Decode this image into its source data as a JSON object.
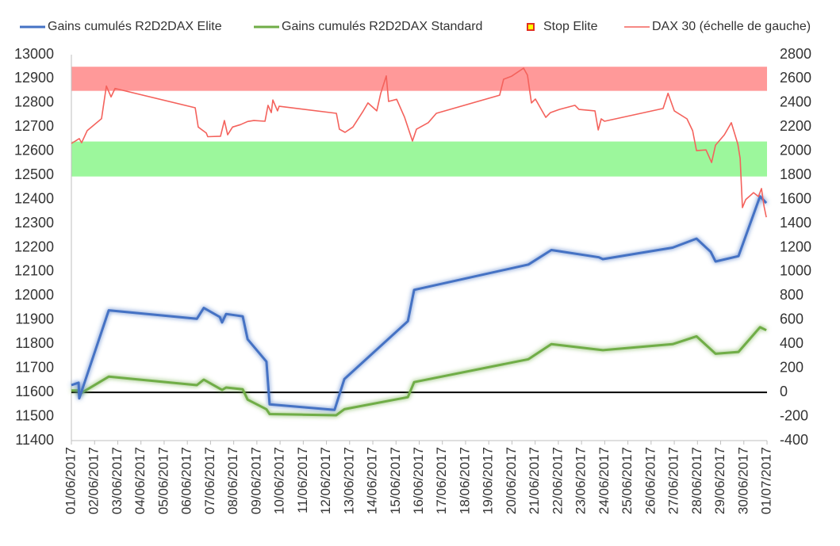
{
  "chart_data": {
    "type": "line",
    "xlim": [
      0,
      30
    ],
    "xticks": [
      {
        "value": 0,
        "label": "01/06/2017"
      },
      {
        "value": 1,
        "label": "02/06/2017"
      },
      {
        "value": 2,
        "label": "03/06/2017"
      },
      {
        "value": 3,
        "label": "04/06/2017"
      },
      {
        "value": 4,
        "label": "05/06/2017"
      },
      {
        "value": 5,
        "label": "06/06/2017"
      },
      {
        "value": 6,
        "label": "07/06/2017"
      },
      {
        "value": 7,
        "label": "08/06/2017"
      },
      {
        "value": 8,
        "label": "09/06/2017"
      },
      {
        "value": 9,
        "label": "10/06/2017"
      },
      {
        "value": 10,
        "label": "11/06/2017"
      },
      {
        "value": 11,
        "label": "12/06/2017"
      },
      {
        "value": 12,
        "label": "13/06/2017"
      },
      {
        "value": 13,
        "label": "14/06/2017"
      },
      {
        "value": 14,
        "label": "15/06/2017"
      },
      {
        "value": 15,
        "label": "16/06/2017"
      },
      {
        "value": 16,
        "label": "17/06/2017"
      },
      {
        "value": 17,
        "label": "18/06/2017"
      },
      {
        "value": 18,
        "label": "19/06/2017"
      },
      {
        "value": 19,
        "label": "20/06/2017"
      },
      {
        "value": 20,
        "label": "21/06/2017"
      },
      {
        "value": 21,
        "label": "22/06/2017"
      },
      {
        "value": 22,
        "label": "23/06/2017"
      },
      {
        "value": 23,
        "label": "24/06/2017"
      },
      {
        "value": 24,
        "label": "25/06/2017"
      },
      {
        "value": 25,
        "label": "26/06/2017"
      },
      {
        "value": 26,
        "label": "27/06/2017"
      },
      {
        "value": 27,
        "label": "28/06/2017"
      },
      {
        "value": 28,
        "label": "29/06/2017"
      },
      {
        "value": 29,
        "label": "30/06/2017"
      },
      {
        "value": 30,
        "label": "01/07/2017"
      }
    ],
    "ylim": [
      11400,
      13000
    ],
    "yticks": [
      11400,
      11500,
      11600,
      11700,
      11800,
      11900,
      12000,
      12100,
      12200,
      12300,
      12400,
      12500,
      12600,
      12700,
      12800,
      12900,
      13000
    ],
    "y2lim": [
      -400,
      2800
    ],
    "y2ticks": [
      -400,
      -200,
      0,
      200,
      400,
      600,
      800,
      1000,
      1200,
      1400,
      1600,
      1800,
      2000,
      2200,
      2400,
      2600,
      2800
    ],
    "bands": [
      {
        "ylim": [
          12850,
          12950
        ],
        "color": "#ff9999"
      },
      {
        "ylim": [
          12495,
          12640
        ],
        "color": "#9cf79c"
      }
    ],
    "reference_line": {
      "axis": "y2",
      "value": 0,
      "color": "#000000"
    },
    "series": [
      {
        "name": "Gains cumulés R2D2DAX Elite",
        "color": "#4472c4",
        "axis": "y2",
        "glow": true,
        "x": [
          0,
          0.31,
          0.34,
          1.61,
          5.41,
          5.71,
          6.4,
          6.5,
          6.67,
          7.39,
          7.6,
          8.41,
          8.55,
          11.35,
          11.77,
          14.51,
          14.78,
          19.71,
          20.7,
          22.75,
          22.92,
          25.93,
          26.96,
          27.57,
          27.78,
          28.77,
          29.7,
          29.97
        ],
        "values": [
          60,
          80,
          -50,
          680,
          610,
          700,
          625,
          580,
          650,
          630,
          440,
          255,
          -100,
          -145,
          110,
          590,
          850,
          1060,
          1180,
          1120,
          1105,
          1200,
          1275,
          1165,
          1085,
          1130,
          1625,
          1570
        ]
      },
      {
        "name": "Gains cumulés R2D2DAX Standard",
        "color": "#70ad47",
        "axis": "y2",
        "glow": true,
        "x": [
          0,
          0.31,
          0.34,
          1.61,
          5.41,
          5.71,
          6.5,
          6.67,
          7.39,
          7.6,
          8.41,
          8.55,
          11.42,
          11.77,
          14.51,
          14.78,
          19.71,
          20.7,
          22.92,
          25.93,
          26.96,
          27.78,
          28.77,
          29.7,
          29.97
        ],
        "values": [
          15,
          15,
          -15,
          130,
          60,
          105,
          20,
          40,
          25,
          -60,
          -140,
          -180,
          -190,
          -140,
          -40,
          85,
          275,
          400,
          350,
          400,
          465,
          320,
          335,
          540,
          515
        ]
      },
      {
        "name": "Stop Elite",
        "color": "#ffff00",
        "border": "#e03020",
        "marker": "square",
        "x": [],
        "values": []
      },
      {
        "name": "DAX 30 (échelle de gauche)",
        "color": "#f4625c",
        "axis": "y",
        "x": [
          0,
          0.34,
          0.44,
          0.68,
          1.3,
          1.51,
          1.71,
          1.88,
          5.34,
          5.47,
          5.82,
          5.88,
          6.43,
          6.6,
          6.74,
          6.95,
          7.29,
          7.6,
          7.87,
          8.35,
          8.48,
          8.62,
          8.69,
          8.89,
          8.96,
          11.43,
          11.56,
          11.8,
          12.14,
          12.59,
          12.79,
          13.17,
          13.34,
          13.58,
          13.68,
          14.03,
          14.37,
          14.71,
          14.88,
          15.39,
          15.74,
          18.47,
          18.64,
          18.99,
          19.5,
          19.67,
          19.84,
          20.01,
          20.46,
          20.66,
          21.04,
          21.72,
          21.89,
          22.58,
          22.72,
          22.85,
          22.99,
          25.52,
          25.73,
          26.0,
          26.55,
          26.79,
          26.96,
          27.37,
          27.61,
          27.78,
          28.16,
          28.46,
          28.74,
          28.84,
          28.94,
          29.08,
          29.42,
          29.63,
          29.76,
          29.87,
          29.97
        ],
        "values": [
          12632,
          12652,
          12635,
          12685,
          12735,
          12870,
          12825,
          12860,
          12780,
          12700,
          12675,
          12660,
          12662,
          12727,
          12668,
          12700,
          12710,
          12723,
          12727,
          12724,
          12790,
          12760,
          12812,
          12767,
          12786,
          12757,
          12691,
          12678,
          12700,
          12767,
          12800,
          12767,
          12840,
          12912,
          12806,
          12815,
          12740,
          12642,
          12691,
          12718,
          12757,
          12832,
          12898,
          12911,
          12944,
          12915,
          12800,
          12816,
          12740,
          12760,
          12773,
          12790,
          12773,
          12767,
          12688,
          12734,
          12724,
          12777,
          12840,
          12767,
          12734,
          12685,
          12602,
          12605,
          12553,
          12625,
          12668,
          12718,
          12629,
          12570,
          12366,
          12399,
          12428,
          12412,
          12445,
          12372,
          12326
        ]
      }
    ]
  }
}
